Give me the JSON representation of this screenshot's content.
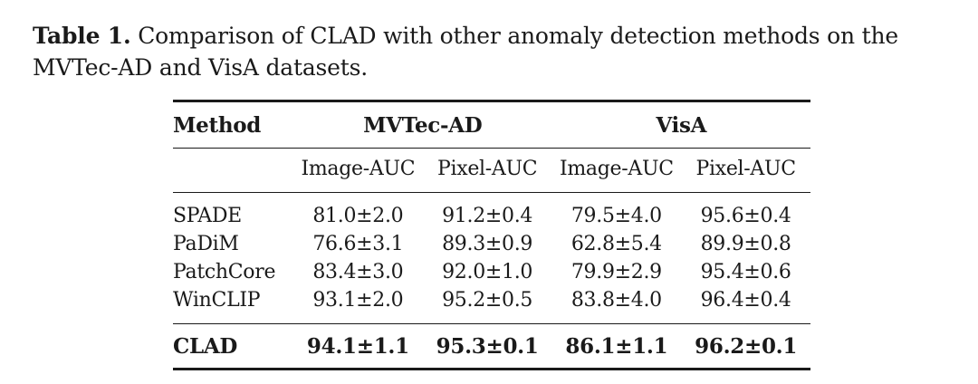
{
  "caption": {
    "label": "Table 1.",
    "text": "Comparison of CLAD with other anomaly detection methods on the MVTec-AD and VisA datasets."
  },
  "table": {
    "method_header": "Method",
    "groups": [
      "MVTec-AD",
      "VisA"
    ],
    "subheaders": [
      "Image-AUC",
      "Pixel-AUC",
      "Image-AUC",
      "Pixel-AUC"
    ],
    "rows": [
      {
        "method": "SPADE",
        "values": [
          "81.0±2.0",
          "91.2±0.4",
          "79.5±4.0",
          "95.6±0.4"
        ]
      },
      {
        "method": "PaDiM",
        "values": [
          "76.6±3.1",
          "89.3±0.9",
          "62.8±5.4",
          "89.9±0.8"
        ]
      },
      {
        "method": "PatchCore",
        "values": [
          "83.4±3.0",
          "92.0±1.0",
          "79.9±2.9",
          "95.4±0.6"
        ]
      },
      {
        "method": "WinCLIP",
        "values": [
          "93.1±2.0",
          "95.2±0.5",
          "83.8±4.0",
          "96.4±0.4"
        ]
      }
    ],
    "best_row": {
      "method": "CLAD",
      "values": [
        "94.1±1.1",
        "95.3±0.1",
        "86.1±1.1",
        "96.2±0.1"
      ]
    }
  }
}
